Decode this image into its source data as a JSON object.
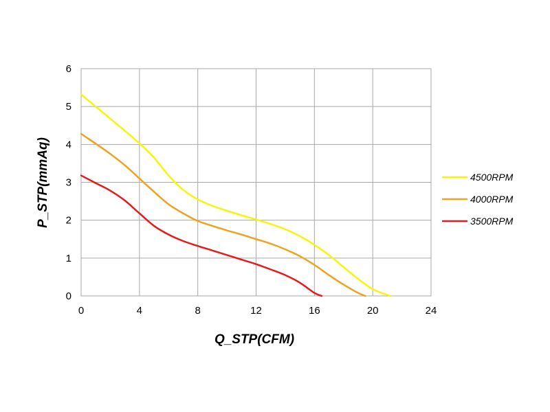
{
  "chart_data": {
    "type": "line",
    "title": "",
    "xlabel": "Q_STP(CFM)",
    "ylabel": "P_STP(mmAq)",
    "xlim": [
      0,
      24
    ],
    "ylim": [
      0,
      6
    ],
    "xticks": [
      0,
      4,
      8,
      12,
      16,
      20,
      24
    ],
    "yticks": [
      0,
      1,
      2,
      3,
      4,
      5,
      6
    ],
    "grid": true,
    "legend": "right",
    "series": [
      {
        "name": "4500RPM",
        "color": "#f5f50a",
        "x": [
          0,
          1,
          2,
          3,
          4,
          5,
          6,
          7,
          8,
          9,
          10,
          11,
          12,
          13,
          14,
          15,
          16,
          17,
          18,
          19,
          20,
          21.2
        ],
        "y": [
          5.32,
          5.0,
          4.68,
          4.36,
          4.03,
          3.65,
          3.18,
          2.8,
          2.55,
          2.38,
          2.25,
          2.13,
          2.02,
          1.9,
          1.76,
          1.58,
          1.35,
          1.08,
          0.76,
          0.45,
          0.18,
          0
        ]
      },
      {
        "name": "4000RPM",
        "color": "#f0a11e",
        "x": [
          0,
          1,
          2,
          3,
          4,
          5,
          6,
          7,
          8,
          9,
          10,
          11,
          12,
          13,
          14,
          15,
          16,
          17,
          18,
          19,
          19.5
        ],
        "y": [
          4.28,
          4.02,
          3.75,
          3.45,
          3.1,
          2.75,
          2.42,
          2.18,
          1.98,
          1.85,
          1.73,
          1.62,
          1.5,
          1.38,
          1.23,
          1.05,
          0.82,
          0.55,
          0.3,
          0.08,
          0
        ]
      },
      {
        "name": "3500RPM",
        "color": "#e8191c",
        "x": [
          0,
          1,
          2,
          3,
          4,
          5,
          6,
          7,
          8,
          9,
          10,
          11,
          12,
          13,
          14,
          15,
          16,
          16.5
        ],
        "y": [
          3.18,
          2.98,
          2.78,
          2.52,
          2.18,
          1.85,
          1.62,
          1.45,
          1.32,
          1.2,
          1.08,
          0.96,
          0.84,
          0.7,
          0.55,
          0.35,
          0.08,
          0
        ]
      }
    ]
  }
}
